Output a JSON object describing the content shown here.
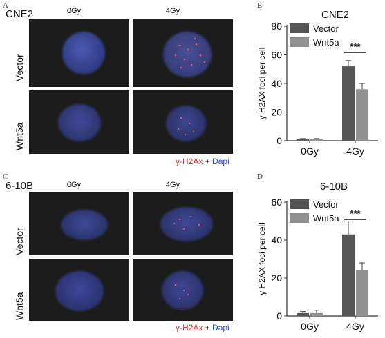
{
  "panels": {
    "A": {
      "letter": "A",
      "cell_line": "CNE2",
      "columns": [
        "0Gy",
        "4Gy"
      ],
      "rows": [
        "Vector",
        "Wnt5a"
      ],
      "stain": {
        "marker": "γ-H2Ax",
        "plus": "+",
        "counter": "Dapi"
      }
    },
    "C": {
      "letter": "C",
      "cell_line": "6-10B",
      "columns": [
        "0Gy",
        "4Gy"
      ],
      "rows": [
        "Vector",
        "Wnt5a"
      ],
      "stain": {
        "marker": "γ-H2Ax",
        "plus": "+",
        "counter": "Dapi"
      }
    },
    "B": {
      "letter": "B"
    },
    "D": {
      "letter": "D"
    }
  },
  "colors": {
    "vector_bar": "#555555",
    "wnt5a_bar": "#909090",
    "marker_red": "#e0302a",
    "counter_blue": "#2a4fd0",
    "nucleus_blue": "#3a4a9a"
  },
  "chart_data": [
    {
      "type": "bar",
      "title": "CNE2",
      "ylabel": "γ H2AX foci per cell",
      "categories": [
        "0Gy",
        "4Gy"
      ],
      "ylim": [
        0,
        80
      ],
      "yticks": [
        0,
        20,
        40,
        60,
        80
      ],
      "series": [
        {
          "name": "Vector",
          "values": [
            1,
            52
          ],
          "errors": [
            0.5,
            4
          ]
        },
        {
          "name": "Wnt5a",
          "values": [
            1,
            36
          ],
          "errors": [
            0.5,
            4
          ]
        }
      ],
      "annotation": "***",
      "legend": "top-right"
    },
    {
      "type": "bar",
      "title": "6-10B",
      "ylabel": "γ H2AX foci per cell",
      "categories": [
        "0Gy",
        "4Gy"
      ],
      "ylim": [
        0,
        60
      ],
      "yticks": [
        0,
        20,
        40,
        60
      ],
      "series": [
        {
          "name": "Vector",
          "values": [
            1.5,
            43
          ],
          "errors": [
            0.8,
            7
          ]
        },
        {
          "name": "Wnt5a",
          "values": [
            1.5,
            24
          ],
          "errors": [
            1.5,
            4
          ]
        }
      ],
      "annotation": "***",
      "legend": "top-right"
    }
  ]
}
